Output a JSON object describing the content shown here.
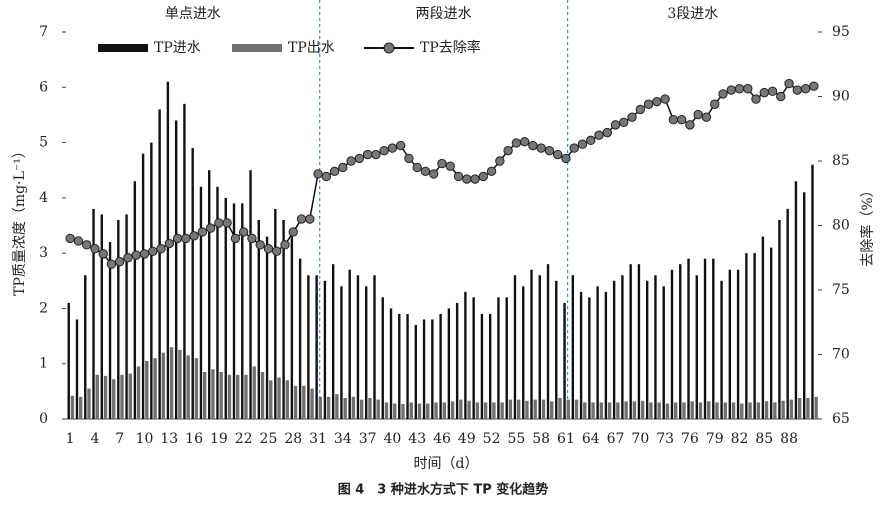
{
  "chart_data": {
    "type": "bar_line",
    "segment_labels": [
      "单点进水",
      "两段进水",
      "3段进水"
    ],
    "xlabel": "时间（d）",
    "ylabel": "TP质量浓度（mg·L⁻¹）",
    "y2label": "去除率（%）",
    "caption": "图 4　3 种进水方式下 TP 变化趋势",
    "categories": [
      "1",
      null,
      null,
      "4",
      null,
      null,
      "7",
      null,
      null,
      "10",
      null,
      null,
      "13",
      null,
      null,
      "16",
      null,
      null,
      "19",
      null,
      null,
      "22",
      null,
      null,
      "25",
      null,
      null,
      "28",
      null,
      null,
      "31",
      null,
      null,
      "34",
      null,
      null,
      "37",
      null,
      null,
      "40",
      null,
      null,
      "43",
      null,
      null,
      "46",
      null,
      null,
      "49",
      null,
      null,
      "52",
      null,
      null,
      "55",
      null,
      null,
      "58",
      null,
      null,
      "61",
      null,
      null,
      "64",
      null,
      null,
      "67",
      null,
      null,
      "70",
      null,
      null,
      "73",
      null,
      null,
      "76",
      null,
      null,
      "79",
      null,
      null,
      "82",
      null,
      null,
      "85",
      null,
      null,
      "88",
      null,
      null,
      null
    ],
    "series": [
      {
        "name": "TP进水",
        "color": "#111111",
        "values": [
          2.1,
          1.8,
          2.6,
          3.8,
          3.7,
          3.2,
          3.6,
          3.7,
          4.3,
          4.8,
          5.0,
          5.6,
          6.1,
          5.4,
          5.7,
          4.9,
          4.2,
          4.5,
          4.2,
          4.0,
          3.9,
          3.9,
          4.5,
          3.6,
          3.3,
          3.8,
          3.6,
          3.3,
          2.9,
          2.6,
          2.6,
          2.5,
          2.8,
          2.4,
          2.7,
          2.6,
          2.4,
          2.6,
          2.2,
          2.0,
          1.9,
          1.9,
          1.7,
          1.8,
          1.8,
          1.9,
          2.0,
          2.1,
          2.3,
          2.2,
          1.9,
          1.9,
          2.2,
          2.2,
          2.6,
          2.4,
          2.7,
          2.6,
          2.8,
          2.5,
          2.1,
          2.6,
          2.3,
          2.2,
          2.4,
          2.3,
          2.5,
          2.6,
          2.8,
          2.8,
          2.5,
          2.6,
          2.4,
          2.7,
          2.8,
          2.9,
          2.6,
          2.9,
          2.9,
          2.5,
          2.7,
          2.7,
          3.0,
          3.0,
          3.3,
          3.1,
          3.6,
          3.8,
          4.3,
          4.1,
          4.6
        ]
      },
      {
        "name": "TP出水",
        "color": "#707070",
        "values": [
          0.42,
          0.4,
          0.55,
          0.8,
          0.78,
          0.72,
          0.8,
          0.82,
          0.95,
          1.05,
          1.1,
          1.2,
          1.3,
          1.25,
          1.15,
          1.1,
          0.85,
          0.9,
          0.85,
          0.8,
          0.8,
          0.8,
          0.95,
          0.85,
          0.7,
          0.75,
          0.7,
          0.6,
          0.6,
          0.55,
          0.4,
          0.4,
          0.45,
          0.38,
          0.4,
          0.35,
          0.38,
          0.35,
          0.3,
          0.28,
          0.27,
          0.3,
          0.28,
          0.28,
          0.3,
          0.3,
          0.32,
          0.35,
          0.33,
          0.3,
          0.3,
          0.3,
          0.3,
          0.35,
          0.35,
          0.33,
          0.35,
          0.35,
          0.32,
          0.38,
          0.35,
          0.35,
          0.3,
          0.3,
          0.3,
          0.3,
          0.3,
          0.32,
          0.32,
          0.33,
          0.3,
          0.3,
          0.28,
          0.3,
          0.3,
          0.32,
          0.3,
          0.32,
          0.3,
          0.3,
          0.3,
          0.28,
          0.3,
          0.3,
          0.32,
          0.3,
          0.33,
          0.35,
          0.38,
          0.38,
          0.4
        ]
      },
      {
        "name": "TP去除率",
        "color": "#111111",
        "axis": "y2",
        "values": [
          79,
          78.8,
          78.5,
          78.2,
          77.8,
          77,
          77.2,
          77.5,
          77.7,
          77.8,
          78,
          78.2,
          78.6,
          79,
          79,
          79.2,
          79.5,
          79.8,
          80.2,
          80.2,
          79,
          79.5,
          79,
          78.5,
          78.2,
          78,
          78.5,
          79.5,
          80.5,
          80.5,
          84,
          83.8,
          84.2,
          84.5,
          85,
          85.2,
          85.5,
          85.5,
          85.8,
          86,
          86.2,
          85.2,
          84.5,
          84.2,
          84,
          84.8,
          84.6,
          83.8,
          83.6,
          83.6,
          83.8,
          84.2,
          85,
          85.8,
          86.4,
          86.5,
          86.2,
          86,
          85.8,
          85.5,
          85.2,
          86,
          86.3,
          86.6,
          87,
          87.2,
          87.8,
          88,
          88.4,
          89,
          89.4,
          89.6,
          89.8,
          88.2,
          88.2,
          87.8,
          88.6,
          88.4,
          89.4,
          90.2,
          90.5,
          90.6,
          90.6,
          89.8,
          90.3,
          90.4,
          90,
          91,
          90.5,
          90.6,
          90.8
        ]
      }
    ],
    "ylim": [
      0,
      7
    ],
    "yticks": [
      0,
      1,
      2,
      3,
      4,
      5,
      6,
      7
    ],
    "y2lim": [
      65,
      95
    ],
    "y2ticks": [
      65,
      70,
      75,
      80,
      85,
      90,
      95
    ]
  }
}
